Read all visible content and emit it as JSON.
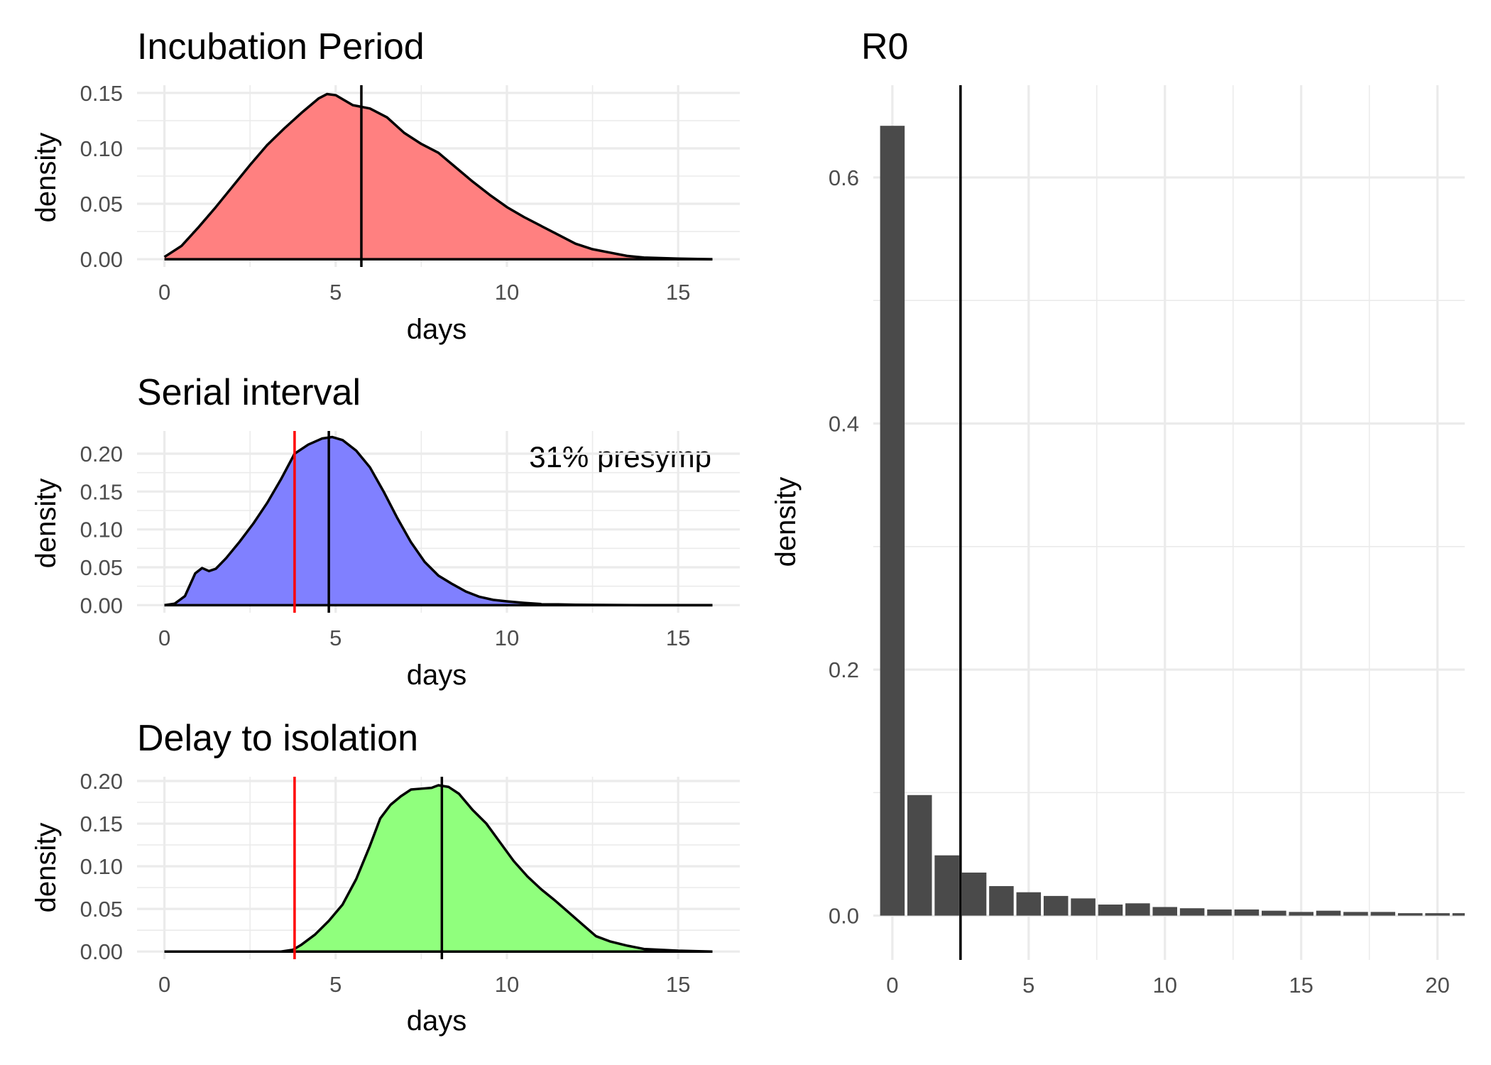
{
  "chart_data": [
    {
      "id": "incubation",
      "type": "area",
      "title": "Incubation Period",
      "xlabel": "days",
      "ylabel": "density",
      "xlim": [
        -0.8,
        16.8
      ],
      "ylim": [
        -0.007,
        0.157
      ],
      "x_ticks": [
        0,
        5,
        10,
        15
      ],
      "x_tick_labels": [
        "0",
        "5",
        "10",
        "15"
      ],
      "y_ticks": [
        0,
        0.05,
        0.1,
        0.15
      ],
      "y_tick_labels": [
        "0.00",
        "0.05",
        "0.10",
        "0.15"
      ],
      "fill_color": "#ff8080",
      "line_color": "#000000",
      "vlines": [
        {
          "x": 5.75,
          "color": "#000000"
        }
      ],
      "series": [
        {
          "x": [
            0,
            0.5,
            1,
            1.5,
            2,
            2.5,
            3,
            3.5,
            4,
            4.5,
            4.75,
            5,
            5.5,
            6,
            6.5,
            7,
            7.5,
            8,
            8.5,
            9,
            9.5,
            10,
            10.5,
            11,
            11.5,
            12,
            12.5,
            13,
            13.5,
            14,
            15,
            16
          ],
          "y": [
            0.002,
            0.012,
            0.029,
            0.047,
            0.066,
            0.085,
            0.103,
            0.118,
            0.132,
            0.145,
            0.149,
            0.148,
            0.139,
            0.136,
            0.128,
            0.114,
            0.104,
            0.096,
            0.083,
            0.07,
            0.058,
            0.047,
            0.038,
            0.03,
            0.022,
            0.014,
            0.009,
            0.006,
            0.003,
            0.0015,
            0.0005,
            0
          ]
        }
      ]
    },
    {
      "id": "serial",
      "type": "area",
      "title": "Serial interval",
      "xlabel": "days",
      "ylabel": "density",
      "annotation": "31% presymp",
      "xlim": [
        -0.8,
        16.8
      ],
      "ylim": [
        -0.01,
        0.23
      ],
      "x_ticks": [
        0,
        5,
        10,
        15
      ],
      "x_tick_labels": [
        "0",
        "5",
        "10",
        "15"
      ],
      "y_ticks": [
        0,
        0.05,
        0.1,
        0.15,
        0.2
      ],
      "y_tick_labels": [
        "0.00",
        "0.05",
        "0.10",
        "0.15",
        "0.20"
      ],
      "fill_color": "#8080ff",
      "line_color": "#000000",
      "vlines": [
        {
          "x": 3.8,
          "color": "#ff0000"
        },
        {
          "x": 4.8,
          "color": "#000000"
        }
      ],
      "series": [
        {
          "x": [
            0,
            0.3,
            0.6,
            0.9,
            1.1,
            1.3,
            1.5,
            1.8,
            2.2,
            2.6,
            3,
            3.4,
            3.8,
            4.2,
            4.6,
            4.9,
            5.2,
            5.6,
            6,
            6.4,
            6.8,
            7.2,
            7.6,
            8,
            8.4,
            8.8,
            9.2,
            9.6,
            10,
            10.5,
            11,
            12,
            14,
            16
          ],
          "y": [
            0,
            0.002,
            0.012,
            0.042,
            0.049,
            0.045,
            0.048,
            0.062,
            0.084,
            0.108,
            0.135,
            0.166,
            0.2,
            0.212,
            0.22,
            0.222,
            0.218,
            0.204,
            0.182,
            0.15,
            0.115,
            0.083,
            0.057,
            0.039,
            0.028,
            0.018,
            0.011,
            0.007,
            0.005,
            0.003,
            0.0015,
            0.0005,
            0,
            0
          ]
        }
      ]
    },
    {
      "id": "isolation",
      "type": "area",
      "title": "Delay to isolation",
      "xlabel": "days",
      "ylabel": "density",
      "xlim": [
        -0.8,
        16.8
      ],
      "ylim": [
        -0.009,
        0.205
      ],
      "x_ticks": [
        0,
        5,
        10,
        15
      ],
      "x_tick_labels": [
        "0",
        "5",
        "10",
        "15"
      ],
      "y_ticks": [
        0,
        0.05,
        0.1,
        0.15,
        0.2
      ],
      "y_tick_labels": [
        "0.00",
        "0.05",
        "0.10",
        "0.15",
        "0.20"
      ],
      "fill_color": "#90ff7d",
      "line_color": "#000000",
      "vlines": [
        {
          "x": 3.8,
          "color": "#ff0000"
        },
        {
          "x": 8.1,
          "color": "#000000"
        }
      ],
      "series": [
        {
          "x": [
            0,
            3.4,
            3.75,
            4,
            4.4,
            4.8,
            5.2,
            5.6,
            6,
            6.3,
            6.6,
            6.9,
            7.2,
            7.5,
            7.8,
            8,
            8.3,
            8.6,
            9,
            9.4,
            9.8,
            10.2,
            10.6,
            11,
            11.4,
            11.8,
            12.2,
            12.6,
            13,
            13.5,
            14,
            15,
            16
          ],
          "y": [
            0,
            0,
            0.002,
            0.008,
            0.02,
            0.036,
            0.055,
            0.085,
            0.124,
            0.156,
            0.172,
            0.182,
            0.19,
            0.191,
            0.192,
            0.195,
            0.193,
            0.185,
            0.166,
            0.15,
            0.128,
            0.106,
            0.088,
            0.073,
            0.06,
            0.046,
            0.032,
            0.018,
            0.012,
            0.007,
            0.003,
            0.001,
            0
          ]
        }
      ]
    },
    {
      "id": "r0",
      "type": "bar",
      "title": "R0",
      "xlabel": "",
      "ylabel": "density",
      "xlim": [
        -0.7,
        21
      ],
      "ylim": [
        -0.036,
        0.675
      ],
      "x_ticks": [
        0,
        5,
        10,
        15,
        20
      ],
      "x_tick_labels": [
        "0",
        "5",
        "10",
        "15",
        "20"
      ],
      "y_ticks": [
        0,
        0.2,
        0.4,
        0.6
      ],
      "y_tick_labels": [
        "0.0",
        "0.2",
        "0.4",
        "0.6"
      ],
      "bar_color": "#4a4a4a",
      "vlines": [
        {
          "x": 2.5,
          "color": "#000000"
        }
      ],
      "categories": [
        0,
        1,
        2,
        3,
        4,
        5,
        6,
        7,
        8,
        9,
        10,
        11,
        12,
        13,
        14,
        15,
        16,
        17,
        18,
        19,
        20,
        21
      ],
      "values": [
        0.642,
        0.098,
        0.049,
        0.035,
        0.024,
        0.019,
        0.016,
        0.014,
        0.009,
        0.01,
        0.007,
        0.006,
        0.005,
        0.005,
        0.004,
        0.003,
        0.004,
        0.003,
        0.003,
        0.002,
        0.002,
        0.002
      ]
    }
  ]
}
